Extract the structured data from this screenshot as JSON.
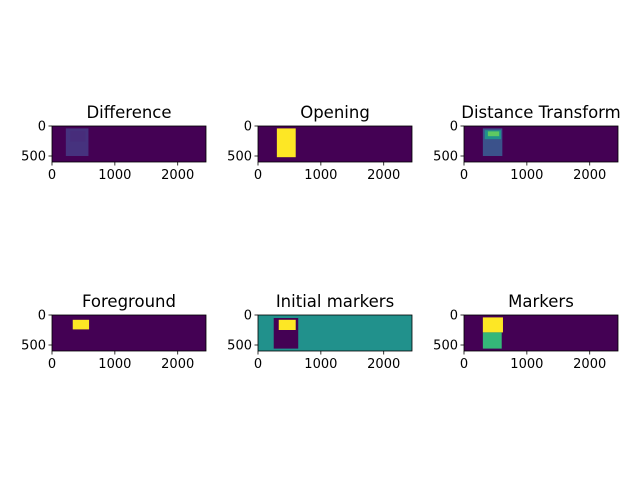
{
  "figure": {
    "background": "#ffffff",
    "colormap": "viridis"
  },
  "chart_data": [
    {
      "type": "heatmap",
      "title": "Difference",
      "xticks": [
        "0",
        "1000",
        "2000"
      ],
      "yticks": [
        "0",
        "500"
      ],
      "xlim": [
        0,
        2450
      ],
      "ylim": [
        600,
        0
      ],
      "background_color": "#440154",
      "regions": [
        {
          "name": "object-body",
          "x": [
            220,
            580
          ],
          "y": [
            40,
            500
          ],
          "color": "#46327e"
        },
        {
          "name": "object-core",
          "x": [
            290,
            530
          ],
          "y": [
            80,
            260
          ],
          "color": "#472d7b"
        }
      ]
    },
    {
      "type": "heatmap",
      "title": "Opening",
      "xticks": [
        "0",
        "1000",
        "2000"
      ],
      "yticks": [
        "0",
        "500"
      ],
      "xlim": [
        0,
        2450
      ],
      "ylim": [
        600,
        0
      ],
      "background_color": "#440154",
      "regions": [
        {
          "name": "opened-object",
          "x": [
            300,
            600
          ],
          "y": [
            40,
            520
          ],
          "color": "#fde725"
        }
      ]
    },
    {
      "type": "heatmap",
      "title": "Distance Transform",
      "xticks": [
        "0",
        "1000",
        "2000"
      ],
      "yticks": [
        "0",
        "500"
      ],
      "xlim": [
        0,
        2450
      ],
      "ylim": [
        600,
        0
      ],
      "background_color": "#440154",
      "regions": [
        {
          "name": "dt-outer",
          "x": [
            300,
            610
          ],
          "y": [
            40,
            500
          ],
          "color": "#3b528b"
        },
        {
          "name": "dt-mid",
          "x": [
            330,
            590
          ],
          "y": [
            70,
            220
          ],
          "color": "#21918c"
        },
        {
          "name": "dt-peak",
          "x": [
            380,
            560
          ],
          "y": [
            90,
            170
          ],
          "color": "#5ec962"
        }
      ]
    },
    {
      "type": "heatmap",
      "title": "Foreground",
      "xticks": [
        "0",
        "1000",
        "2000"
      ],
      "yticks": [
        "0",
        "500"
      ],
      "xlim": [
        0,
        2450
      ],
      "ylim": [
        600,
        0
      ],
      "background_color": "#440154",
      "regions": [
        {
          "name": "sure-foreground",
          "x": [
            330,
            590
          ],
          "y": [
            80,
            240
          ],
          "color": "#fde725"
        }
      ]
    },
    {
      "type": "heatmap",
      "title": "Initial markers",
      "xticks": [
        "0",
        "1000",
        "2000"
      ],
      "yticks": [
        "0",
        "500"
      ],
      "xlim": [
        0,
        2450
      ],
      "ylim": [
        600,
        0
      ],
      "background_color": "#21918c",
      "regions": [
        {
          "name": "unknown-region",
          "x": [
            250,
            640
          ],
          "y": [
            50,
            560
          ],
          "color": "#440154"
        },
        {
          "name": "marker-foreground",
          "x": [
            330,
            600
          ],
          "y": [
            80,
            250
          ],
          "color": "#fde725"
        }
      ]
    },
    {
      "type": "heatmap",
      "title": "Markers",
      "xticks": [
        "0",
        "1000",
        "2000"
      ],
      "yticks": [
        "0",
        "500"
      ],
      "xlim": [
        0,
        2450
      ],
      "ylim": [
        600,
        0
      ],
      "background_color": "#440154",
      "regions": [
        {
          "name": "segment-top",
          "x": [
            300,
            620
          ],
          "y": [
            40,
            290
          ],
          "color": "#fde725"
        },
        {
          "name": "segment-bottom",
          "x": [
            300,
            600
          ],
          "y": [
            290,
            560
          ],
          "color": "#35b779"
        }
      ]
    }
  ]
}
